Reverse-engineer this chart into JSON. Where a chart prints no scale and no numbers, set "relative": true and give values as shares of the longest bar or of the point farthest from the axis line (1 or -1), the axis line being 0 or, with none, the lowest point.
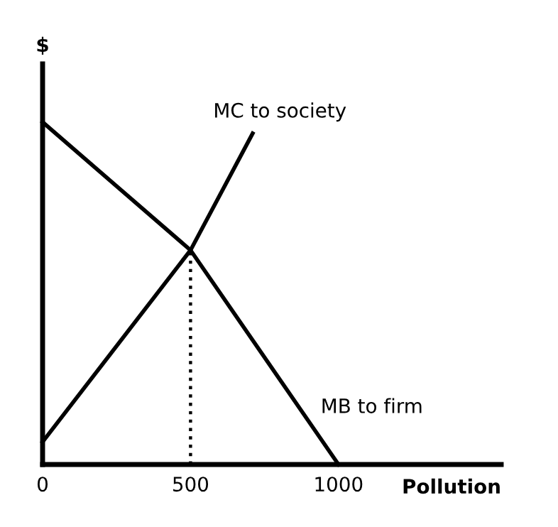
{
  "chart_data": {
    "type": "line",
    "relative": true,
    "xlabel": "Pollution",
    "ylabel": "$",
    "xlim": [
      0,
      1550
    ],
    "xticks": [
      0,
      500,
      1000
    ],
    "grid": false,
    "legend": false,
    "marker": "none",
    "series": [
      {
        "name": "MC to society",
        "color": "#000000",
        "x": [
          0,
          500,
          710
        ],
        "values": [
          0.066,
          0.626,
          0.967
        ]
      },
      {
        "name": "MB to firm",
        "color": "#000000",
        "x": [
          0,
          500,
          1000
        ],
        "values": [
          1,
          0.626,
          0
        ]
      },
      {
        "color": "#000000",
        "line_style": "dotted",
        "x": [
          500,
          500
        ],
        "values": [
          0,
          0.626
        ]
      }
    ]
  }
}
